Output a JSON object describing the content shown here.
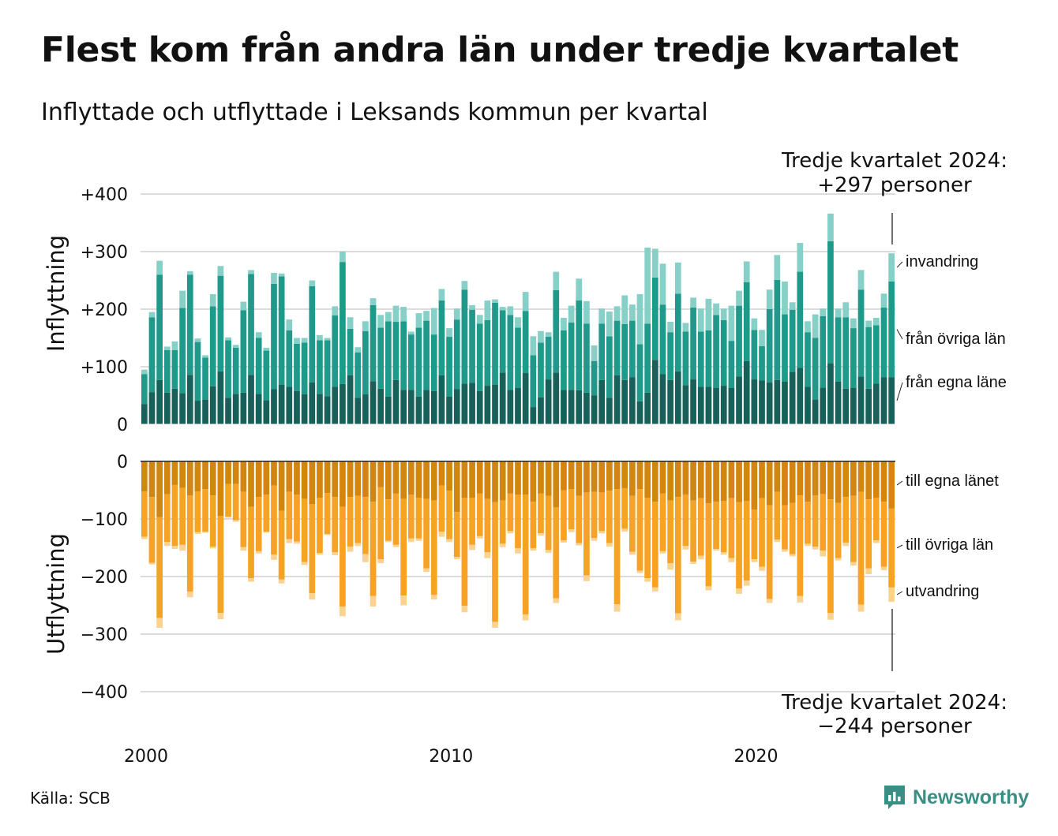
{
  "title": "Flest kom från andra län under tredje kvartalet",
  "subtitle": "Inflyttade och utflyttade i Leksands kommun per kvartal",
  "source": "Källa: SCB",
  "brand": "Newsworthy",
  "colors": {
    "in_own": "#17615a",
    "in_other": "#1f9a8a",
    "in_immig": "#86d0c7",
    "out_own": "#d2850f",
    "out_other": "#f6a224",
    "out_emig": "#fbd28f",
    "grid": "#dcdcdc",
    "brand": "#3a8f84"
  },
  "chart_data": [
    {
      "type": "bar",
      "stacked": true,
      "panel": "top",
      "ylabel": "Inflyttning",
      "ylim": [
        0,
        400
      ],
      "yticks": [
        0,
        100,
        200,
        300,
        400
      ],
      "ytick_labels": [
        "0",
        "+100",
        "+200",
        "+300",
        "+400"
      ],
      "xticks": [
        "2000",
        "2010",
        "2020"
      ],
      "x_start": "2000 Q1",
      "x_end": "2024 Q3",
      "series": [
        {
          "name": "från egna läne",
          "values": [
            35,
            56,
            77,
            55,
            62,
            54,
            86,
            41,
            43,
            66,
            92,
            46,
            53,
            55,
            86,
            53,
            42,
            61,
            69,
            65,
            58,
            52,
            73,
            53,
            49,
            65,
            70,
            85,
            46,
            52,
            75,
            62,
            48,
            77,
            60,
            60,
            48,
            60,
            58,
            85,
            48,
            61,
            71,
            72,
            58,
            67,
            69,
            90,
            60,
            63,
            89,
            30,
            47,
            78,
            90,
            60,
            60,
            59,
            55,
            50,
            77,
            46,
            85,
            77,
            82,
            40,
            55,
            112,
            87,
            77,
            92,
            68,
            78,
            65,
            65,
            63,
            67,
            63,
            83,
            110,
            78,
            76,
            73,
            77,
            74,
            91,
            98,
            65,
            43,
            64,
            106,
            74,
            62,
            63,
            83,
            62,
            71,
            82,
            82
          ]
        },
        {
          "name": "från övriga län",
          "values": [
            52,
            130,
            183,
            74,
            67,
            148,
            174,
            102,
            73,
            139,
            166,
            100,
            80,
            143,
            175,
            97,
            86,
            183,
            188,
            98,
            82,
            90,
            167,
            93,
            97,
            124,
            212,
            81,
            79,
            110,
            132,
            106,
            131,
            101,
            119,
            96,
            120,
            120,
            98,
            130,
            104,
            121,
            163,
            127,
            117,
            114,
            142,
            108,
            130,
            105,
            108,
            90,
            95,
            74,
            143,
            103,
            117,
            156,
            120,
            60,
            98,
            107,
            95,
            97,
            98,
            99,
            120,
            143,
            121,
            83,
            135,
            93,
            125,
            96,
            98,
            127,
            114,
            82,
            123,
            137,
            86,
            60,
            127,
            174,
            117,
            108,
            167,
            95,
            107,
            124,
            212,
            112,
            124,
            104,
            151,
            107,
            101,
            121,
            166
          ]
        },
        {
          "name": "invandring",
          "values": [
            8,
            9,
            24,
            6,
            15,
            30,
            6,
            6,
            4,
            21,
            17,
            5,
            5,
            15,
            7,
            10,
            5,
            19,
            5,
            19,
            10,
            8,
            10,
            9,
            4,
            16,
            18,
            20,
            9,
            17,
            12,
            22,
            16,
            28,
            25,
            5,
            25,
            17,
            46,
            20,
            15,
            19,
            15,
            8,
            15,
            34,
            6,
            6,
            15,
            18,
            33,
            33,
            20,
            8,
            32,
            22,
            29,
            38,
            39,
            27,
            26,
            43,
            25,
            50,
            28,
            87,
            132,
            50,
            71,
            18,
            54,
            15,
            17,
            40,
            55,
            20,
            20,
            61,
            26,
            36,
            20,
            28,
            34,
            43,
            57,
            13,
            50,
            19,
            41,
            13,
            48,
            15,
            26,
            17,
            34,
            11,
            13,
            24,
            49
          ]
        }
      ]
    },
    {
      "type": "bar",
      "stacked": true,
      "panel": "bottom",
      "ylabel": "Utflyttning",
      "ylim": [
        -400,
        0
      ],
      "yticks": [
        0,
        -100,
        -200,
        -300,
        -400
      ],
      "ytick_labels": [
        "0",
        "−100",
        "−200",
        "−300",
        "−400"
      ],
      "xticks": [
        "2000",
        "2010",
        "2020"
      ],
      "x_start": "2000 Q1",
      "x_end": "2024 Q3",
      "series": [
        {
          "name": "till egna länet",
          "values": [
            -52,
            -62,
            -97,
            -57,
            -41,
            -46,
            -59,
            -52,
            -48,
            -59,
            -95,
            -39,
            -39,
            -53,
            -79,
            -62,
            -58,
            -42,
            -86,
            -53,
            -58,
            -65,
            -74,
            -63,
            -55,
            -62,
            -79,
            -62,
            -60,
            -62,
            -70,
            -45,
            -66,
            -56,
            -65,
            -58,
            -63,
            -65,
            -68,
            -42,
            -51,
            -88,
            -63,
            -63,
            -56,
            -65,
            -71,
            -68,
            -56,
            -58,
            -58,
            -70,
            -56,
            -60,
            -80,
            -50,
            -48,
            -60,
            -54,
            -53,
            -54,
            -51,
            -48,
            -47,
            -60,
            -48,
            -63,
            -70,
            -56,
            -68,
            -62,
            -58,
            -68,
            -64,
            -73,
            -70,
            -69,
            -64,
            -71,
            -69,
            -84,
            -64,
            -76,
            -53,
            -76,
            -72,
            -59,
            -70,
            -59,
            -57,
            -66,
            -72,
            -62,
            -60,
            -53,
            -66,
            -63,
            -70,
            -82
          ]
        },
        {
          "name": "till övriga län",
          "values": [
            -79,
            -114,
            -175,
            -83,
            -106,
            -99,
            -167,
            -71,
            -74,
            -89,
            -168,
            -57,
            -63,
            -96,
            -124,
            -94,
            -64,
            -120,
            -119,
            -82,
            -81,
            -110,
            -155,
            -96,
            -71,
            -96,
            -173,
            -86,
            -82,
            -99,
            -164,
            -125,
            -72,
            -89,
            -168,
            -76,
            -71,
            -121,
            -164,
            -80,
            -84,
            -78,
            -188,
            -82,
            -74,
            -93,
            -208,
            -75,
            -65,
            -93,
            -208,
            -81,
            -69,
            -94,
            -158,
            -87,
            -70,
            -82,
            -144,
            -80,
            -67,
            -91,
            -200,
            -70,
            -97,
            -142,
            -140,
            -149,
            -100,
            -109,
            -202,
            -89,
            -106,
            -100,
            -144,
            -82,
            -89,
            -104,
            -150,
            -138,
            -86,
            -119,
            -163,
            -83,
            -77,
            -89,
            -175,
            -73,
            -89,
            -98,
            -197,
            -96,
            -79,
            -115,
            -196,
            -120,
            -74,
            -113,
            -137
          ]
        },
        {
          "name": "utvandring",
          "values": [
            -4,
            -3,
            -17,
            -7,
            -5,
            -10,
            -10,
            -3,
            -2,
            -3,
            -11,
            -2,
            -3,
            -6,
            -6,
            -4,
            -2,
            -9,
            -7,
            -7,
            -4,
            -5,
            -11,
            -3,
            -2,
            -5,
            -17,
            -9,
            -5,
            -14,
            -18,
            -7,
            -2,
            -4,
            -17,
            -6,
            -4,
            -6,
            -8,
            -9,
            -5,
            -4,
            -11,
            -9,
            -4,
            -10,
            -10,
            -6,
            -4,
            -9,
            -10,
            -4,
            -4,
            -5,
            -8,
            -4,
            -5,
            -4,
            -10,
            -5,
            -4,
            -6,
            -13,
            -5,
            -5,
            -4,
            -6,
            -7,
            -4,
            -11,
            -12,
            -6,
            -4,
            -6,
            -7,
            -3,
            -4,
            -7,
            -9,
            -9,
            -5,
            -7,
            -7,
            -4,
            -4,
            -4,
            -11,
            -4,
            -5,
            -10,
            -12,
            -4,
            -6,
            -6,
            -12,
            -10,
            -5,
            -6,
            -25
          ]
        }
      ]
    }
  ],
  "annotations": {
    "top_title": "Tredje kvartalet 2024:",
    "top_value": "+297 personer",
    "bottom_title": "Tredje kvartalet 2024:",
    "bottom_value": "−244 personer"
  },
  "legend_top": [
    "invandring",
    "från övriga län",
    "från egna läne"
  ],
  "legend_bottom": [
    "till egna länet",
    "till övriga län",
    "utvandring"
  ]
}
